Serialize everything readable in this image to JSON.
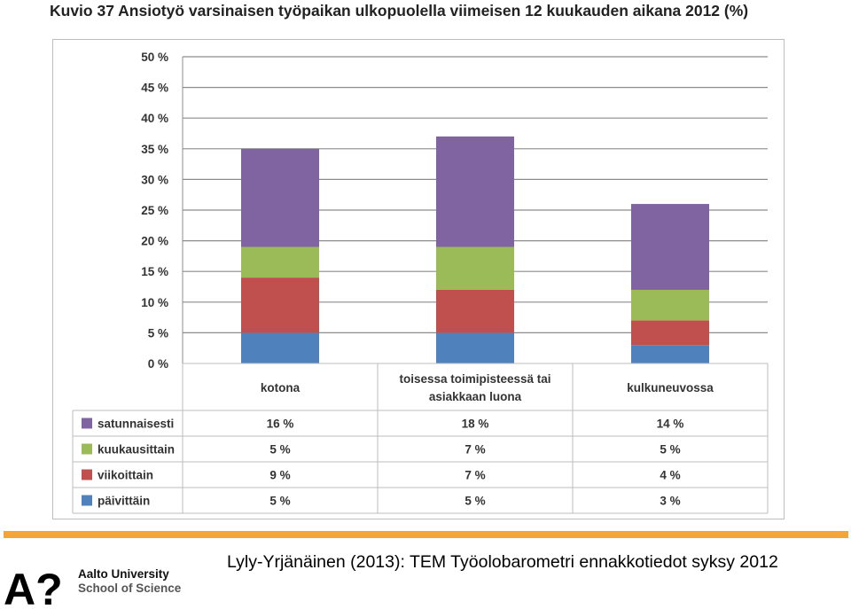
{
  "chart_data": {
    "type": "bar",
    "stacked": true,
    "title": "Kuvio 37 Ansiotyö varsinaisen työpaikan ulkopuolella viimeisen 12 kuukauden aikana 2012 (%)",
    "categories": [
      "kotona",
      "toisessa toimipisteessä tai asiakkaan luona",
      "kulkuneuvossa"
    ],
    "category_lines": [
      [
        "kotona"
      ],
      [
        "toisessa toimipisteessä tai",
        "asiakkaan luona"
      ],
      [
        "kulkuneuvossa"
      ]
    ],
    "series": [
      {
        "name": "päivittäin",
        "values": [
          5,
          5,
          3
        ],
        "labels": [
          "5 %",
          "5 %",
          "3 %"
        ],
        "color": "#4f81bd"
      },
      {
        "name": "viikoittain",
        "values": [
          9,
          7,
          4
        ],
        "labels": [
          "9 %",
          "7 %",
          "4 %"
        ],
        "color": "#c0504d"
      },
      {
        "name": "kuukausittain",
        "values": [
          5,
          7,
          5
        ],
        "labels": [
          "5 %",
          "7 %",
          "5 %"
        ],
        "color": "#9bbb59"
      },
      {
        "name": "satunnaisesti",
        "values": [
          16,
          18,
          14
        ],
        "labels": [
          "16 %",
          "18 %",
          "14 %"
        ],
        "color": "#8064a2"
      }
    ],
    "table_order": [
      "satunnaisesti",
      "kuukausittain",
      "viikoittain",
      "päivittäin"
    ],
    "yticks": [
      "0 %",
      "5 %",
      "10 %",
      "15 %",
      "20 %",
      "25 %",
      "30 %",
      "35 %",
      "40 %",
      "45 %",
      "50 %"
    ],
    "ylim": [
      0,
      50
    ],
    "ystep": 5,
    "grid": true,
    "legend": "data-table"
  },
  "footer": {
    "logo_mark": "A?",
    "university": "Aalto University",
    "school": "School of Science",
    "citation": "Lyly-Yrjänäinen (2013): TEM Työolobarometri ennakkotiedot syksy 2012",
    "accent_color": "#f5a43a"
  }
}
